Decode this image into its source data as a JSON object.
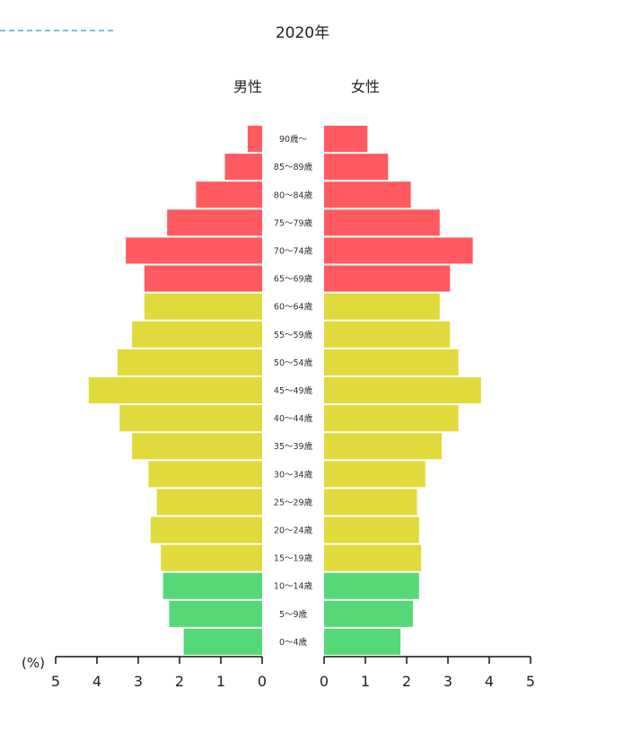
{
  "chart_data": {
    "type": "bar",
    "title": "2020年",
    "left_label": "男性",
    "right_label": "女性",
    "unit_label": "(%)",
    "xlim": [
      0,
      5
    ],
    "ticks": [
      0,
      1,
      2,
      3,
      4,
      5
    ],
    "grid": false,
    "categories": [
      "0～4歳",
      "5～9歳",
      "10～14歳",
      "15～19歳",
      "20～24歳",
      "25～29歳",
      "30～34歳",
      "35～39歳",
      "40～44歳",
      "45～49歳",
      "50～54歳",
      "55～59歳",
      "60～64歳",
      "65～69歳",
      "70～74歳",
      "75～79歳",
      "80～84歳",
      "85～89歳",
      "90歳～"
    ],
    "series": [
      {
        "name": "男性",
        "values": [
          1.9,
          2.25,
          2.4,
          2.45,
          2.7,
          2.55,
          2.75,
          3.15,
          3.45,
          4.2,
          3.5,
          3.15,
          2.85,
          2.85,
          3.3,
          2.3,
          1.6,
          0.9,
          0.35
        ]
      },
      {
        "name": "女性",
        "values": [
          1.85,
          2.15,
          2.3,
          2.35,
          2.3,
          2.25,
          2.45,
          2.85,
          3.25,
          3.8,
          3.25,
          3.05,
          2.8,
          3.05,
          3.6,
          2.8,
          2.1,
          1.55,
          1.05
        ]
      }
    ],
    "group_colors": {
      "young": "#55d977",
      "working": "#e0da3c",
      "elderly": "#ff5a60"
    },
    "groups": [
      "young",
      "young",
      "young",
      "working",
      "working",
      "working",
      "working",
      "working",
      "working",
      "working",
      "working",
      "working",
      "working",
      "elderly",
      "elderly",
      "elderly",
      "elderly",
      "elderly",
      "elderly"
    ]
  }
}
